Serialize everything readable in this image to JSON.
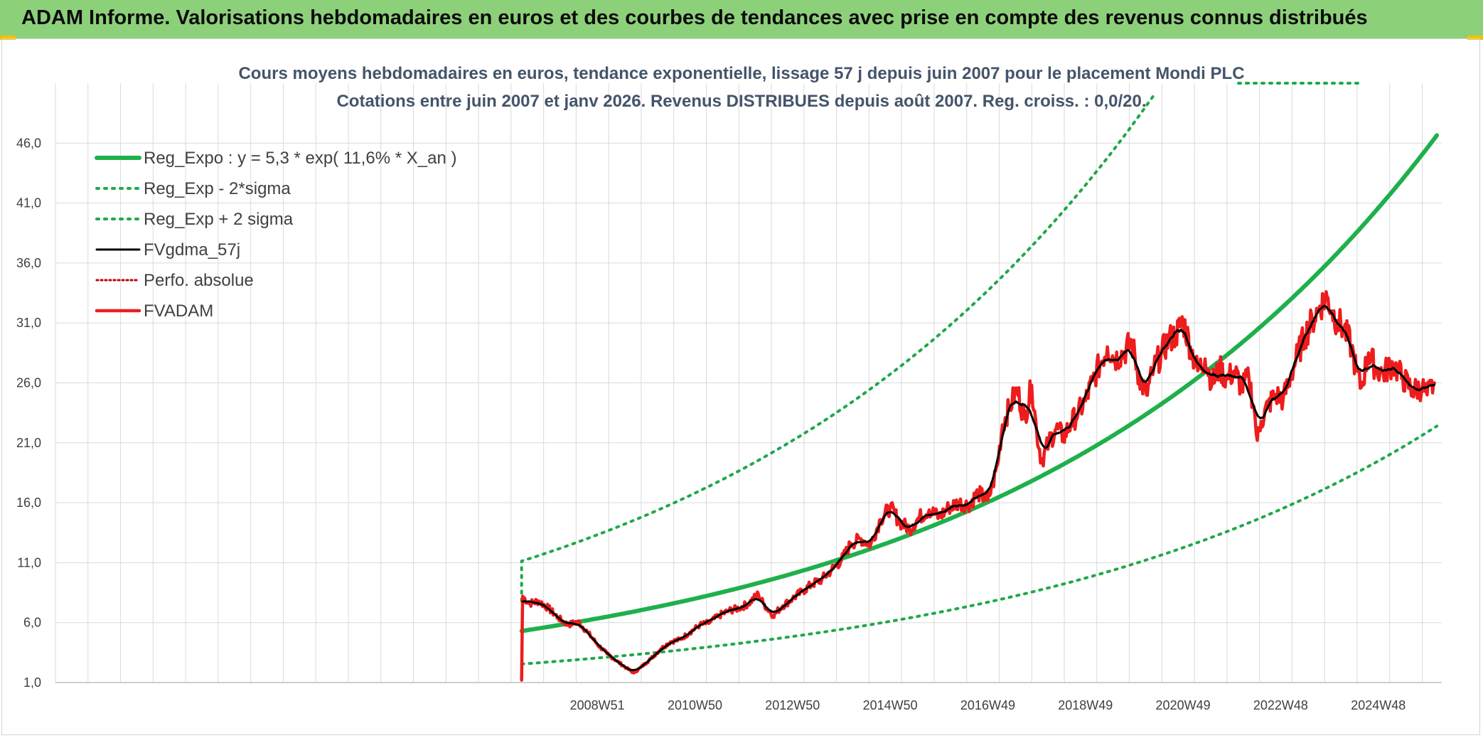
{
  "header": {
    "title": "ADAM Informe. Valorisations hebdomadaires en euros et des courbes de tendances avec prise en compte des revenus connus distribués"
  },
  "colors": {
    "banner": "#8dd07a",
    "reg_expo": "#1fb04c",
    "band": "#1fa84a",
    "smooth": "#000000",
    "price": "#ee1c1c",
    "accent": "#f2c200"
  },
  "chart_data": {
    "type": "line",
    "title": "Cours moyens hebdomadaires en euros, tendance exponentielle, lissage 57 j depuis juin 2007 pour le placement Mondi PLC",
    "subtitle": "Cotations entre juin 2007 et janv 2026. Revenus DISTRIBUES depuis août 2007. Reg. croiss. : 0,0/20.",
    "ylim": [
      1.0,
      51.0
    ],
    "yticks": [
      "1,0",
      "6,0",
      "11,0",
      "16,0",
      "21,0",
      "26,0",
      "31,0",
      "36,0",
      "41,0",
      "46,0"
    ],
    "xlim": [
      1997.9,
      2026.3
    ],
    "xticks": [
      {
        "label": "2008W51",
        "x": 2009.0
      },
      {
        "label": "2010W50",
        "x": 2011.0
      },
      {
        "label": "2012W50",
        "x": 2013.0
      },
      {
        "label": "2014W50",
        "x": 2015.0
      },
      {
        "label": "2016W49",
        "x": 2017.0
      },
      {
        "label": "2018W49",
        "x": 2019.0
      },
      {
        "label": "2020W49",
        "x": 2021.0
      },
      {
        "label": "2022W48",
        "x": 2023.0
      },
      {
        "label": "2024W48",
        "x": 2025.0
      }
    ],
    "grid": true,
    "legend_position": "top-left",
    "regression": {
      "a": 5.3,
      "rate": 0.116,
      "x0": 2007.45,
      "x_end": 2026.2,
      "sigma_factor_upper": 2.1,
      "sigma_factor_lower": 0.48
    },
    "series": [
      {
        "name": "Reg_Expo : y = 5,3 * exp( 11,6% *  X_an )",
        "kind": "reg"
      },
      {
        "name": "Reg_Exp - 2*sigma",
        "kind": "lower"
      },
      {
        "name": "Reg_Exp + 2 sigma",
        "kind": "upper"
      },
      {
        "name": "FVgdma_57j",
        "kind": "smooth"
      },
      {
        "name": "Perfo. absolue",
        "kind": "perfo"
      },
      {
        "name": "FVADAM",
        "kind": "price"
      }
    ],
    "price_points": [
      [
        2007.45,
        1.2
      ],
      [
        2007.47,
        8.2
      ],
      [
        2007.6,
        7.6
      ],
      [
        2007.8,
        7.8
      ],
      [
        2008.0,
        7.2
      ],
      [
        2008.2,
        6.4
      ],
      [
        2008.4,
        5.8
      ],
      [
        2008.6,
        6.1
      ],
      [
        2008.8,
        5.2
      ],
      [
        2009.0,
        4.2
      ],
      [
        2009.2,
        3.4
      ],
      [
        2009.4,
        2.8
      ],
      [
        2009.6,
        2.2
      ],
      [
        2009.75,
        1.8
      ],
      [
        2009.9,
        2.3
      ],
      [
        2010.1,
        3.0
      ],
      [
        2010.3,
        3.8
      ],
      [
        2010.5,
        4.4
      ],
      [
        2010.7,
        4.6
      ],
      [
        2010.9,
        5.2
      ],
      [
        2011.1,
        5.8
      ],
      [
        2011.3,
        6.0
      ],
      [
        2011.5,
        6.6
      ],
      [
        2011.7,
        7.0
      ],
      [
        2011.9,
        7.2
      ],
      [
        2012.1,
        7.6
      ],
      [
        2012.3,
        8.4
      ],
      [
        2012.4,
        7.6
      ],
      [
        2012.6,
        6.6
      ],
      [
        2012.8,
        7.4
      ],
      [
        2013.0,
        8.0
      ],
      [
        2013.2,
        8.6
      ],
      [
        2013.4,
        9.2
      ],
      [
        2013.6,
        9.6
      ],
      [
        2013.8,
        10.4
      ],
      [
        2014.0,
        11.2
      ],
      [
        2014.2,
        12.6
      ],
      [
        2014.4,
        13.0
      ],
      [
        2014.6,
        12.5
      ],
      [
        2014.8,
        14.6
      ],
      [
        2015.0,
        15.6
      ],
      [
        2015.2,
        14.4
      ],
      [
        2015.4,
        13.8
      ],
      [
        2015.6,
        14.8
      ],
      [
        2015.8,
        15.4
      ],
      [
        2016.0,
        14.8
      ],
      [
        2016.2,
        15.6
      ],
      [
        2016.4,
        16.0
      ],
      [
        2016.6,
        15.8
      ],
      [
        2016.8,
        16.8
      ],
      [
        2017.0,
        16.2
      ],
      [
        2017.1,
        17.5
      ],
      [
        2017.2,
        19.2
      ],
      [
        2017.3,
        22.5
      ],
      [
        2017.45,
        24.0
      ],
      [
        2017.6,
        25.5
      ],
      [
        2017.75,
        23.0
      ],
      [
        2017.9,
        25.8
      ],
      [
        2018.0,
        22.0
      ],
      [
        2018.1,
        19.5
      ],
      [
        2018.25,
        21.0
      ],
      [
        2018.4,
        22.2
      ],
      [
        2018.55,
        21.5
      ],
      [
        2018.7,
        22.6
      ],
      [
        2018.85,
        23.5
      ],
      [
        2019.0,
        24.5
      ],
      [
        2019.15,
        26.2
      ],
      [
        2019.3,
        27.6
      ],
      [
        2019.45,
        29.0
      ],
      [
        2019.6,
        28.0
      ],
      [
        2019.8,
        28.6
      ],
      [
        2019.95,
        29.4
      ],
      [
        2020.1,
        26.5
      ],
      [
        2020.25,
        25.0
      ],
      [
        2020.4,
        27.2
      ],
      [
        2020.55,
        28.4
      ],
      [
        2020.7,
        29.6
      ],
      [
        2020.85,
        30.0
      ],
      [
        2021.0,
        31.2
      ],
      [
        2021.15,
        29.0
      ],
      [
        2021.3,
        27.0
      ],
      [
        2021.45,
        28.0
      ],
      [
        2021.6,
        26.0
      ],
      [
        2021.75,
        27.2
      ],
      [
        2021.9,
        26.3
      ],
      [
        2022.05,
        27.0
      ],
      [
        2022.2,
        25.6
      ],
      [
        2022.35,
        26.4
      ],
      [
        2022.45,
        24.0
      ],
      [
        2022.52,
        21.2
      ],
      [
        2022.6,
        22.8
      ],
      [
        2022.75,
        24.2
      ],
      [
        2022.9,
        25.0
      ],
      [
        2023.05,
        24.6
      ],
      [
        2023.2,
        26.5
      ],
      [
        2023.35,
        28.4
      ],
      [
        2023.5,
        30.0
      ],
      [
        2023.65,
        31.2
      ],
      [
        2023.8,
        32.4
      ],
      [
        2023.95,
        33.2
      ],
      [
        2024.05,
        32.0
      ],
      [
        2024.15,
        31.2
      ],
      [
        2024.3,
        30.5
      ],
      [
        2024.45,
        29.0
      ],
      [
        2024.55,
        27.0
      ],
      [
        2024.65,
        25.6
      ],
      [
        2024.8,
        28.5
      ],
      [
        2024.95,
        27.2
      ],
      [
        2025.1,
        26.8
      ],
      [
        2025.3,
        27.6
      ],
      [
        2025.5,
        26.4
      ],
      [
        2025.7,
        25.4
      ],
      [
        2025.9,
        25.6
      ],
      [
        2026.0,
        25.0
      ],
      [
        2026.15,
        26.0
      ]
    ]
  }
}
